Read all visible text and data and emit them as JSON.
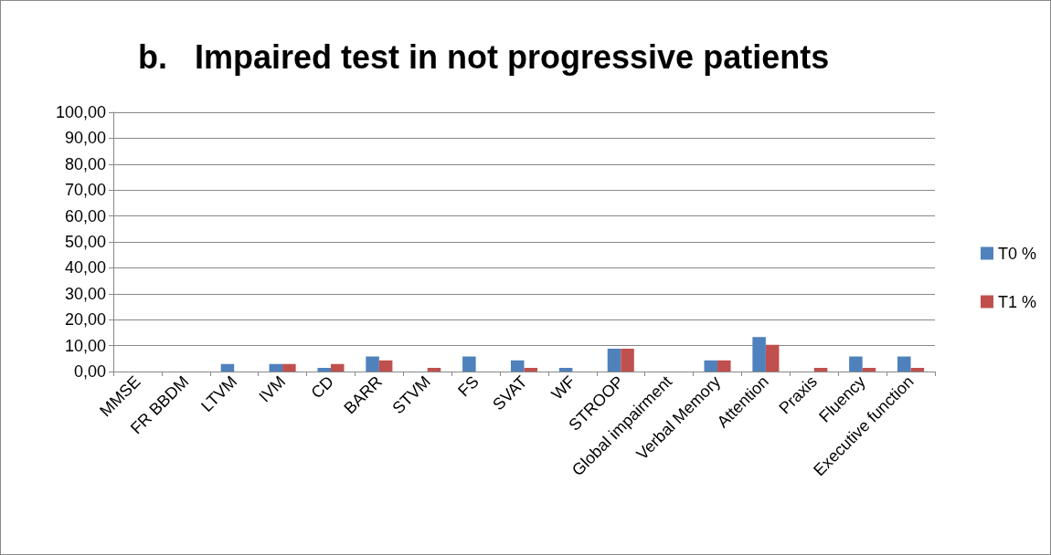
{
  "chart_data": {
    "type": "bar",
    "title": "b.   Impaired test in not progressive patients",
    "categories": [
      "MMSE",
      "FR BBDM",
      "LTVM",
      "IVM",
      "CD",
      "BARR",
      "STVM",
      "FS",
      "SVAT",
      "WF",
      "STROOP",
      "Global impairment",
      "Verbal Memory",
      "Attention",
      "Praxis",
      "Fluency",
      "Executive function"
    ],
    "series": [
      {
        "name": "T0 %",
        "color": "#4f81bd",
        "values": [
          0,
          0,
          2.9,
          2.9,
          1.4,
          5.8,
          0,
          5.8,
          4.3,
          1.4,
          8.8,
          0,
          4.3,
          13.3,
          0,
          5.8,
          5.8
        ]
      },
      {
        "name": "T1 %",
        "color": "#c0504d",
        "values": [
          0,
          0,
          0,
          2.9,
          2.9,
          4.3,
          1.4,
          0,
          1.4,
          0,
          8.8,
          0,
          4.3,
          10.3,
          1.4,
          1.4,
          1.4
        ]
      }
    ],
    "ylim": [
      0,
      100
    ],
    "yticks": [
      {
        "value": 0,
        "label": "0,00"
      },
      {
        "value": 10,
        "label": "10,00"
      },
      {
        "value": 20,
        "label": "20,00"
      },
      {
        "value": 30,
        "label": "30,00"
      },
      {
        "value": 40,
        "label": "40,00"
      },
      {
        "value": 50,
        "label": "50,00"
      },
      {
        "value": 60,
        "label": "60,00"
      },
      {
        "value": 70,
        "label": "70,00"
      },
      {
        "value": 80,
        "label": "80,00"
      },
      {
        "value": 90,
        "label": "90,00"
      },
      {
        "value": 100,
        "label": "100,00"
      }
    ],
    "grid": "y",
    "legend": "right"
  }
}
